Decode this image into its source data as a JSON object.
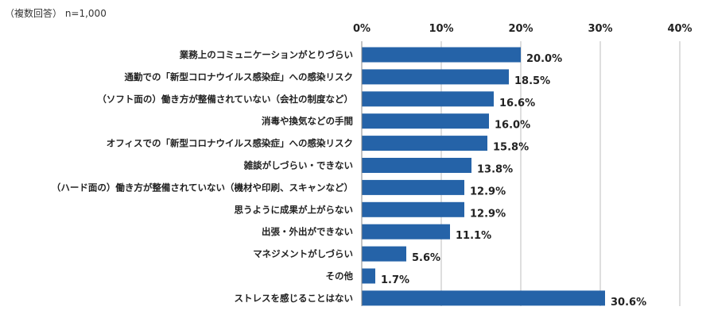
{
  "note": "（複数回答） n=1,000",
  "chart_data": {
    "type": "bar",
    "orientation": "horizontal",
    "title": "",
    "xlim": [
      0,
      40
    ],
    "ticks": [
      0,
      10,
      20,
      30,
      40
    ],
    "tick_labels": [
      "0%",
      "10%",
      "20%",
      "30%",
      "40%"
    ],
    "grid": true,
    "bar_color": "#2563a8",
    "categories": [
      "業務上のコミュニケーションがとりづらい",
      "通勤での「新型コロナウイルス感染症」への感染リスク",
      "（ソフト面の）働き方が整備されていない（会社の制度など）",
      "消毒や換気などの手間",
      "オフィスでの「新型コロナウイルス感染症」への感染リスク",
      "雑談がしづらい・できない",
      "（ハード面の）働き方が整備されていない（機材や印刷、スキャンなど）",
      "思うように成果が上がらない",
      "出張・外出ができない",
      "マネジメントがしづらい",
      "その他",
      "ストレスを感じることはない"
    ],
    "values": [
      20.0,
      18.5,
      16.6,
      16.0,
      15.8,
      13.8,
      12.9,
      12.9,
      11.1,
      5.6,
      1.7,
      30.6
    ],
    "value_labels": [
      "20.0%",
      "18.5%",
      "16.6%",
      "16.0%",
      "15.8%",
      "13.8%",
      "12.9%",
      "12.9%",
      "11.1%",
      "5.6%",
      "1.7%",
      "30.6%"
    ]
  }
}
